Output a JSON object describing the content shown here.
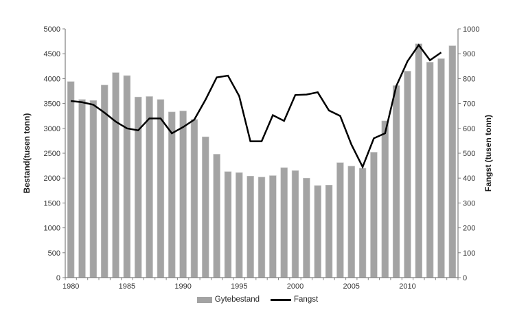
{
  "chart_data": {
    "type": "bar",
    "combo": "bar+line, dual y-axes",
    "title": "",
    "x": [
      1980,
      1981,
      1982,
      1983,
      1984,
      1985,
      1986,
      1987,
      1988,
      1989,
      1990,
      1991,
      1992,
      1993,
      1994,
      1995,
      1996,
      1997,
      1998,
      1999,
      2000,
      2001,
      2002,
      2003,
      2004,
      2005,
      2006,
      2007,
      2008,
      2009,
      2010,
      2011,
      2012,
      2013,
      2014
    ],
    "series": [
      {
        "name": "Gytebestand",
        "type": "bar",
        "axis": "left",
        "values": [
          3940,
          3580,
          3560,
          3870,
          4120,
          4060,
          3630,
          3640,
          3580,
          3330,
          3350,
          3180,
          2830,
          2480,
          2130,
          2110,
          2040,
          2020,
          2050,
          2210,
          2150,
          2000,
          1850,
          1860,
          2310,
          2240,
          2200,
          2520,
          3150,
          3860,
          4150,
          4700,
          4330,
          4400,
          4660
        ]
      },
      {
        "name": "Fangst",
        "type": "line",
        "axis": "right",
        "values": [
          710,
          705,
          695,
          663,
          627,
          600,
          592,
          640,
          640,
          580,
          605,
          635,
          715,
          805,
          812,
          730,
          548,
          548,
          653,
          630,
          734,
          736,
          745,
          672,
          650,
          535,
          445,
          560,
          580,
          770,
          870,
          935,
          874,
          905,
          null
        ]
      }
    ],
    "left_axis": {
      "label": "Bestand(tusen tonn)",
      "min": 0,
      "max": 5000,
      "step": 500,
      "ticks": [
        0,
        500,
        1000,
        1500,
        2000,
        2500,
        3000,
        3500,
        4000,
        4500,
        5000
      ]
    },
    "right_axis": {
      "label": "Fangst (tusen tonn)",
      "min": 0,
      "max": 1000,
      "step": 100,
      "ticks": [
        0,
        100,
        200,
        300,
        400,
        500,
        600,
        700,
        800,
        900,
        1000
      ]
    },
    "x_axis": {
      "tick_labels": [
        1980,
        1985,
        1990,
        1995,
        2000,
        2005,
        2010
      ]
    },
    "legend": {
      "position": "bottom-center",
      "entries": [
        {
          "label": "Gytebestand",
          "swatch": "bar",
          "color": "#a3a3a3"
        },
        {
          "label": "Fangst",
          "swatch": "line",
          "color": "#000000"
        }
      ]
    },
    "grid": "off",
    "colors": {
      "bar": "#a3a3a3",
      "bar_edge": "#c4c4c4",
      "line": "#000000",
      "axis": "#7f7f7f",
      "tick_text": "#333333"
    }
  }
}
